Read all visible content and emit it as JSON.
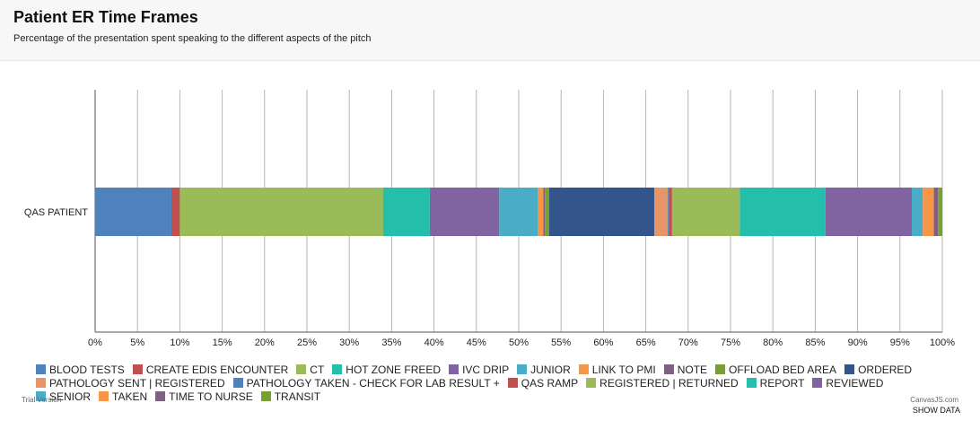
{
  "header": {
    "title": "Patient ER Time Frames",
    "subtitle": "Percentage of the presentation spent speaking to the different aspects of the pitch"
  },
  "footer": {
    "trial_label": "Trial Version",
    "credit_label": "CanvasJS.com",
    "show_data_label": "SHOW DATA"
  },
  "chart_data": {
    "type": "bar",
    "orientation": "horizontal",
    "stacking": "100%",
    "categories": [
      "QAS PATIENT"
    ],
    "x_ticks": [
      "0%",
      "5%",
      "10%",
      "15%",
      "20%",
      "25%",
      "30%",
      "35%",
      "40%",
      "45%",
      "50%",
      "55%",
      "60%",
      "65%",
      "70%",
      "75%",
      "80%",
      "85%",
      "90%",
      "95%",
      "100%"
    ],
    "xlim": [
      0,
      100
    ],
    "grid": true,
    "legend_position": "bottom",
    "series": [
      {
        "name": "Blood Tests",
        "color": "#4F81BC",
        "values": [
          9.0
        ]
      },
      {
        "name": "Create EDIS Encounter",
        "color": "#C0504E",
        "values": [
          1.0
        ]
      },
      {
        "name": "CT",
        "color": "#9BBB58",
        "values": [
          24.0
        ]
      },
      {
        "name": "Hot Zone Freed",
        "color": "#23BFAA",
        "values": [
          5.5
        ]
      },
      {
        "name": "IVC Drip",
        "color": "#8064A1",
        "values": [
          8.2
        ]
      },
      {
        "name": "Junior",
        "color": "#4AACC5",
        "values": [
          4.6
        ]
      },
      {
        "name": "Link to PMI",
        "color": "#F79647",
        "values": [
          0.6
        ]
      },
      {
        "name": "Note",
        "color": "#7F6084",
        "values": [
          0.2
        ]
      },
      {
        "name": "Offload Bed Area",
        "color": "#77A033",
        "values": [
          0.5
        ]
      },
      {
        "name": "Ordered",
        "color": "#33558B",
        "values": [
          12.4
        ]
      },
      {
        "name": "Pathology Sent | Registered",
        "color": "#E59566",
        "values": [
          1.6
        ]
      },
      {
        "name": "Pathology Taken - Check for Lab Result +",
        "color": "#4F81BC",
        "values": [
          0.1
        ]
      },
      {
        "name": "QAS Ramp",
        "color": "#C0504E",
        "values": [
          0.4
        ]
      },
      {
        "name": "Registered | Returned",
        "color": "#9BBB58",
        "values": [
          8.0
        ]
      },
      {
        "name": "Report",
        "color": "#23BFAA",
        "values": [
          10.1
        ]
      },
      {
        "name": "Reviewed",
        "color": "#8064A1",
        "values": [
          10.2
        ]
      },
      {
        "name": "Senior",
        "color": "#4AACC5",
        "values": [
          1.3
        ]
      },
      {
        "name": "Taken",
        "color": "#F79647",
        "values": [
          1.3
        ]
      },
      {
        "name": "Time to Nurse",
        "color": "#7F6084",
        "values": [
          0.5
        ]
      },
      {
        "name": "Transit",
        "color": "#77A033",
        "values": [
          0.5
        ]
      }
    ]
  }
}
